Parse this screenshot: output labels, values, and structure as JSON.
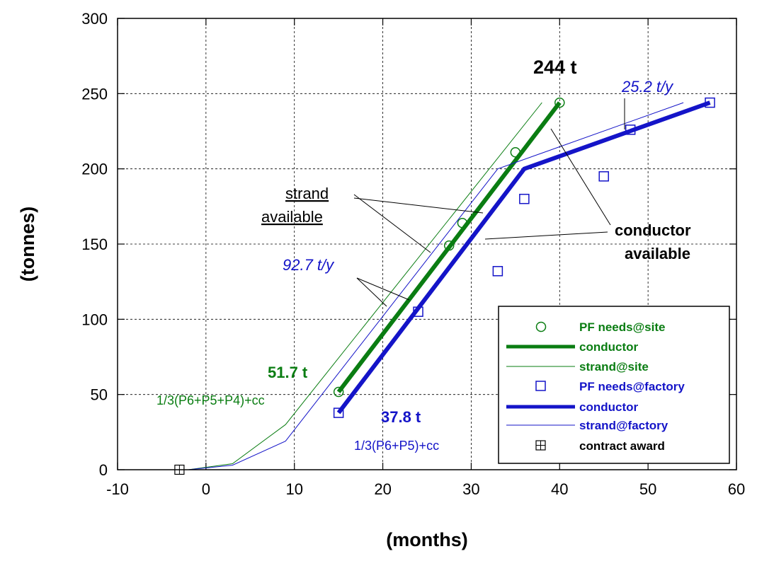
{
  "colors": {
    "green": "#0a7d12",
    "blue": "#1414c8",
    "black": "#000000"
  },
  "chart_data": {
    "type": "line",
    "xlabel": "(months)",
    "ylabel": "(tonnes)",
    "xlim": [
      -10,
      60
    ],
    "ylim": [
      0,
      300
    ],
    "x_ticks": [
      -10,
      0,
      10,
      20,
      30,
      40,
      50,
      60
    ],
    "y_ticks": [
      0,
      50,
      100,
      150,
      200,
      250,
      300
    ],
    "grid": true,
    "legend_position": "bottom-right",
    "series": [
      {
        "name": "PF needs@site",
        "kind": "scatter",
        "marker": "circle",
        "color": "#0a7d12",
        "points": [
          [
            15,
            51.7
          ],
          [
            27.5,
            149
          ],
          [
            29,
            164
          ],
          [
            35,
            211
          ],
          [
            40,
            244
          ]
        ]
      },
      {
        "name": "conductor",
        "kind": "line",
        "width": "thick",
        "color": "#0a7d12",
        "points": [
          [
            15,
            51.7
          ],
          [
            40,
            244
          ]
        ]
      },
      {
        "name": "strand@site",
        "kind": "line",
        "width": "thin",
        "color": "#0a7d12",
        "points": [
          [
            -2,
            0
          ],
          [
            3,
            4
          ],
          [
            9,
            30
          ],
          [
            38,
            244
          ]
        ]
      },
      {
        "name": "PF needs@factory",
        "kind": "scatter",
        "marker": "square",
        "color": "#1414c8",
        "points": [
          [
            15,
            37.8
          ],
          [
            24,
            105
          ],
          [
            33,
            132
          ],
          [
            36,
            180
          ],
          [
            45,
            195
          ],
          [
            48,
            226
          ],
          [
            57,
            244
          ]
        ]
      },
      {
        "name": "conductor",
        "kind": "line",
        "width": "thick",
        "color": "#1414c8",
        "points": [
          [
            15,
            37.8
          ],
          [
            36,
            200
          ],
          [
            57,
            244
          ]
        ]
      },
      {
        "name": "strand@factory",
        "kind": "line",
        "width": "thin",
        "color": "#1414c8",
        "points": [
          [
            -2,
            0
          ],
          [
            3,
            3
          ],
          [
            9,
            19
          ],
          [
            33,
            200
          ],
          [
            54,
            244
          ]
        ]
      },
      {
        "name": "contract award",
        "kind": "scatter",
        "marker": "crossed-square",
        "color": "#000000",
        "points": [
          [
            -3,
            0
          ]
        ]
      }
    ],
    "annotations": {
      "total": "244 t",
      "rate_factory": "25.2 t/y",
      "rate_site": "92.7 t/y",
      "strand_line1": "strand",
      "strand_line2": "available",
      "conductor_line1": "conductor",
      "conductor_line2": "available",
      "site_start_value": "51.7 t",
      "site_start_formula": "1/3(P6+P5+P4)+cc",
      "factory_start_value": "37.8 t",
      "factory_start_formula": "1/3(P6+P5)+cc"
    }
  }
}
